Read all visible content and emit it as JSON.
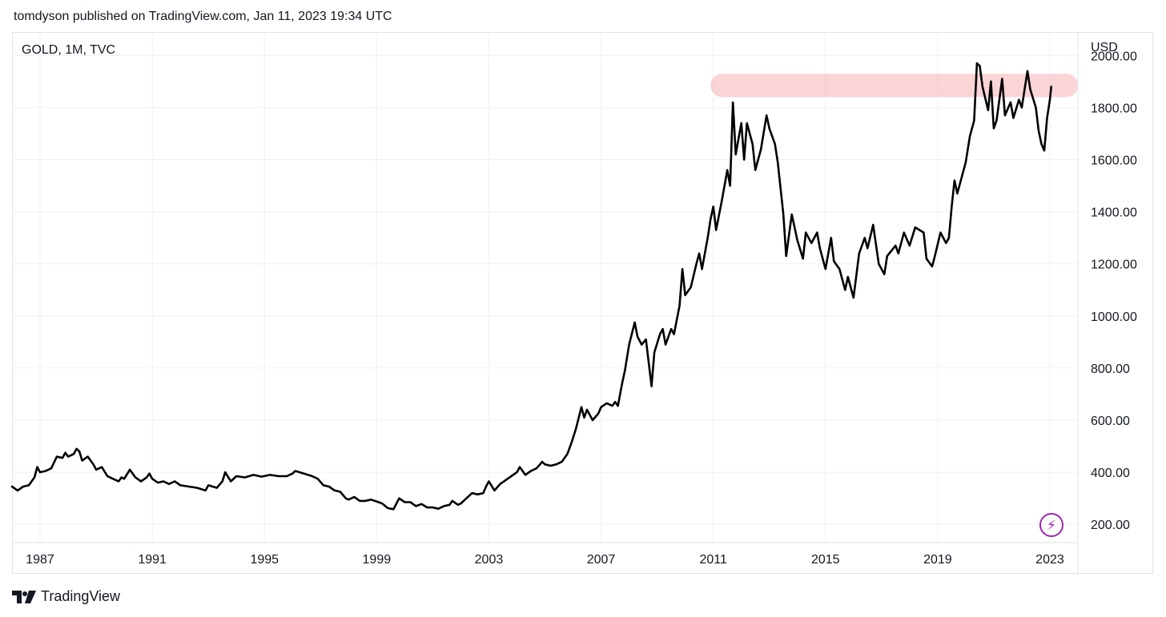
{
  "header": {
    "published_text": "tomdyson published on TradingView.com, Jan 11, 2023 19:34 UTC"
  },
  "symbol": {
    "label": "GOLD, 1M, TVC"
  },
  "currency": "USD",
  "footer": {
    "brand": "TradingView",
    "logo_icon": "tradingview-logo-icon"
  },
  "colors": {
    "line": "#000000",
    "highlight": "#f7b8bd",
    "grid": "#eef0f4",
    "accent": "#9c27b0"
  },
  "chart_data": {
    "type": "line",
    "xlim": [
      1986.0,
      2024.0
    ],
    "ylim": [
      130,
      2090
    ],
    "y_ticks": [
      200,
      400,
      600,
      800,
      1000,
      1200,
      1400,
      1600,
      1800,
      2000
    ],
    "y_tick_labels": [
      "200.00",
      "400.00",
      "600.00",
      "800.00",
      "1000.00",
      "1200.00",
      "1400.00",
      "1600.00",
      "1800.00",
      "2000.00"
    ],
    "x_ticks": [
      1987,
      1991,
      1995,
      1999,
      2003,
      2007,
      2011,
      2015,
      2019,
      2023
    ],
    "x_tick_labels": [
      "1987",
      "1991",
      "1995",
      "1999",
      "2003",
      "2007",
      "2011",
      "2015",
      "2019",
      "2023"
    ],
    "grid": true,
    "highlight_band": {
      "x_start": 2010.9,
      "x_end": 2024.0,
      "y_low": 1840,
      "y_high": 1930
    },
    "series": [
      {
        "values": [
          [
            1986.0,
            345
          ],
          [
            1986.2,
            330
          ],
          [
            1986.4,
            345
          ],
          [
            1986.6,
            350
          ],
          [
            1986.8,
            380
          ],
          [
            1986.9,
            420
          ],
          [
            1987.0,
            400
          ],
          [
            1987.2,
            405
          ],
          [
            1987.4,
            415
          ],
          [
            1987.6,
            460
          ],
          [
            1987.8,
            455
          ],
          [
            1987.9,
            475
          ],
          [
            1988.0,
            460
          ],
          [
            1988.2,
            470
          ],
          [
            1988.3,
            490
          ],
          [
            1988.4,
            480
          ],
          [
            1988.5,
            445
          ],
          [
            1988.7,
            460
          ],
          [
            1988.9,
            430
          ],
          [
            1989.0,
            410
          ],
          [
            1989.2,
            420
          ],
          [
            1989.4,
            385
          ],
          [
            1989.6,
            375
          ],
          [
            1989.8,
            365
          ],
          [
            1989.9,
            380
          ],
          [
            1990.0,
            375
          ],
          [
            1990.2,
            410
          ],
          [
            1990.4,
            380
          ],
          [
            1990.6,
            365
          ],
          [
            1990.8,
            380
          ],
          [
            1990.9,
            395
          ],
          [
            1991.0,
            375
          ],
          [
            1991.2,
            360
          ],
          [
            1991.4,
            365
          ],
          [
            1991.6,
            355
          ],
          [
            1991.8,
            365
          ],
          [
            1992.0,
            350
          ],
          [
            1992.3,
            345
          ],
          [
            1992.6,
            340
          ],
          [
            1992.9,
            330
          ],
          [
            1993.0,
            350
          ],
          [
            1993.3,
            340
          ],
          [
            1993.5,
            365
          ],
          [
            1993.6,
            400
          ],
          [
            1993.8,
            365
          ],
          [
            1994.0,
            385
          ],
          [
            1994.3,
            380
          ],
          [
            1994.6,
            390
          ],
          [
            1994.9,
            383
          ],
          [
            1995.2,
            390
          ],
          [
            1995.5,
            385
          ],
          [
            1995.8,
            385
          ],
          [
            1996.0,
            395
          ],
          [
            1996.1,
            405
          ],
          [
            1996.4,
            395
          ],
          [
            1996.7,
            385
          ],
          [
            1996.9,
            375
          ],
          [
            1997.1,
            350
          ],
          [
            1997.3,
            345
          ],
          [
            1997.5,
            330
          ],
          [
            1997.7,
            325
          ],
          [
            1997.9,
            300
          ],
          [
            1998.0,
            295
          ],
          [
            1998.2,
            305
          ],
          [
            1998.4,
            290
          ],
          [
            1998.6,
            290
          ],
          [
            1998.8,
            295
          ],
          [
            1999.0,
            288
          ],
          [
            1999.2,
            280
          ],
          [
            1999.4,
            262
          ],
          [
            1999.6,
            258
          ],
          [
            1999.8,
            300
          ],
          [
            2000.0,
            285
          ],
          [
            2000.2,
            285
          ],
          [
            2000.4,
            270
          ],
          [
            2000.6,
            278
          ],
          [
            2000.8,
            265
          ],
          [
            2001.0,
            265
          ],
          [
            2001.2,
            260
          ],
          [
            2001.4,
            270
          ],
          [
            2001.6,
            275
          ],
          [
            2001.7,
            290
          ],
          [
            2001.9,
            275
          ],
          [
            2002.0,
            280
          ],
          [
            2002.2,
            300
          ],
          [
            2002.4,
            320
          ],
          [
            2002.6,
            315
          ],
          [
            2002.8,
            320
          ],
          [
            2002.9,
            345
          ],
          [
            2003.0,
            365
          ],
          [
            2003.2,
            330
          ],
          [
            2003.4,
            355
          ],
          [
            2003.6,
            370
          ],
          [
            2003.8,
            385
          ],
          [
            2004.0,
            400
          ],
          [
            2004.1,
            420
          ],
          [
            2004.3,
            390
          ],
          [
            2004.5,
            405
          ],
          [
            2004.7,
            415
          ],
          [
            2004.9,
            440
          ],
          [
            2005.0,
            430
          ],
          [
            2005.2,
            425
          ],
          [
            2005.4,
            430
          ],
          [
            2005.6,
            440
          ],
          [
            2005.8,
            470
          ],
          [
            2005.95,
            515
          ],
          [
            2006.1,
            565
          ],
          [
            2006.3,
            650
          ],
          [
            2006.4,
            610
          ],
          [
            2006.5,
            640
          ],
          [
            2006.7,
            600
          ],
          [
            2006.9,
            625
          ],
          [
            2007.0,
            650
          ],
          [
            2007.2,
            665
          ],
          [
            2007.4,
            655
          ],
          [
            2007.5,
            670
          ],
          [
            2007.6,
            655
          ],
          [
            2007.75,
            740
          ],
          [
            2007.85,
            790
          ],
          [
            2008.0,
            890
          ],
          [
            2008.2,
            975
          ],
          [
            2008.3,
            920
          ],
          [
            2008.45,
            890
          ],
          [
            2008.6,
            910
          ],
          [
            2008.8,
            730
          ],
          [
            2008.9,
            860
          ],
          [
            2009.1,
            930
          ],
          [
            2009.2,
            950
          ],
          [
            2009.3,
            890
          ],
          [
            2009.5,
            950
          ],
          [
            2009.6,
            930
          ],
          [
            2009.8,
            1040
          ],
          [
            2009.9,
            1180
          ],
          [
            2010.0,
            1080
          ],
          [
            2010.2,
            1110
          ],
          [
            2010.4,
            1200
          ],
          [
            2010.5,
            1240
          ],
          [
            2010.6,
            1180
          ],
          [
            2010.8,
            1300
          ],
          [
            2010.9,
            1370
          ],
          [
            2011.0,
            1420
          ],
          [
            2011.1,
            1330
          ],
          [
            2011.3,
            1440
          ],
          [
            2011.5,
            1560
          ],
          [
            2011.6,
            1500
          ],
          [
            2011.7,
            1820
          ],
          [
            2011.8,
            1620
          ],
          [
            2012.0,
            1740
          ],
          [
            2012.1,
            1600
          ],
          [
            2012.2,
            1740
          ],
          [
            2012.4,
            1660
          ],
          [
            2012.5,
            1560
          ],
          [
            2012.7,
            1640
          ],
          [
            2012.9,
            1770
          ],
          [
            2013.0,
            1720
          ],
          [
            2013.2,
            1660
          ],
          [
            2013.3,
            1590
          ],
          [
            2013.5,
            1390
          ],
          [
            2013.6,
            1230
          ],
          [
            2013.8,
            1390
          ],
          [
            2014.0,
            1290
          ],
          [
            2014.2,
            1220
          ],
          [
            2014.3,
            1320
          ],
          [
            2014.5,
            1280
          ],
          [
            2014.7,
            1320
          ],
          [
            2014.8,
            1260
          ],
          [
            2015.0,
            1180
          ],
          [
            2015.2,
            1300
          ],
          [
            2015.3,
            1210
          ],
          [
            2015.5,
            1180
          ],
          [
            2015.7,
            1100
          ],
          [
            2015.8,
            1150
          ],
          [
            2016.0,
            1070
          ],
          [
            2016.2,
            1240
          ],
          [
            2016.4,
            1300
          ],
          [
            2016.5,
            1260
          ],
          [
            2016.7,
            1350
          ],
          [
            2016.9,
            1200
          ],
          [
            2017.1,
            1160
          ],
          [
            2017.2,
            1230
          ],
          [
            2017.5,
            1270
          ],
          [
            2017.6,
            1240
          ],
          [
            2017.8,
            1320
          ],
          [
            2018.0,
            1270
          ],
          [
            2018.2,
            1340
          ],
          [
            2018.5,
            1320
          ],
          [
            2018.6,
            1220
          ],
          [
            2018.8,
            1190
          ],
          [
            2018.9,
            1230
          ],
          [
            2019.1,
            1320
          ],
          [
            2019.3,
            1280
          ],
          [
            2019.4,
            1300
          ],
          [
            2019.5,
            1420
          ],
          [
            2019.6,
            1520
          ],
          [
            2019.7,
            1470
          ],
          [
            2019.9,
            1550
          ],
          [
            2020.0,
            1590
          ],
          [
            2020.15,
            1690
          ],
          [
            2020.3,
            1750
          ],
          [
            2020.4,
            1970
          ],
          [
            2020.5,
            1960
          ],
          [
            2020.6,
            1880
          ],
          [
            2020.8,
            1790
          ],
          [
            2020.9,
            1900
          ],
          [
            2021.0,
            1720
          ],
          [
            2021.1,
            1750
          ],
          [
            2021.3,
            1910
          ],
          [
            2021.4,
            1770
          ],
          [
            2021.6,
            1820
          ],
          [
            2021.7,
            1760
          ],
          [
            2021.9,
            1830
          ],
          [
            2022.0,
            1800
          ],
          [
            2022.2,
            1940
          ],
          [
            2022.3,
            1870
          ],
          [
            2022.5,
            1800
          ],
          [
            2022.6,
            1710
          ],
          [
            2022.7,
            1660
          ],
          [
            2022.8,
            1635
          ],
          [
            2022.9,
            1760
          ],
          [
            2023.0,
            1830
          ],
          [
            2023.05,
            1880
          ]
        ]
      }
    ]
  }
}
